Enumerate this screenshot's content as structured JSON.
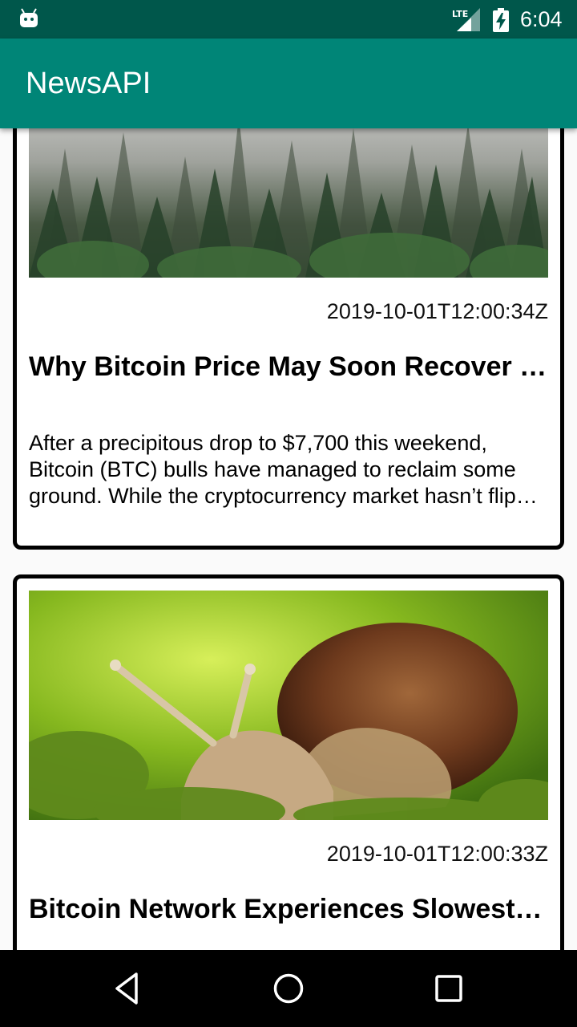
{
  "status_bar": {
    "time": "6:04",
    "network": "LTE",
    "icons": [
      "android-debug-icon",
      "lte-signal-icon",
      "battery-charging-icon"
    ]
  },
  "app_bar": {
    "title": "NewsAPI",
    "color": "#008577"
  },
  "articles": [
    {
      "image": "misty-forest-photo",
      "published_at": "2019-10-01T12:00:34Z",
      "title": "Why Bitcoin Price May Soon Recover t…",
      "description_lines": [
        "After a precipitous drop to $7,700 this weekend,",
        "Bitcoin (BTC) bulls have managed to reclaim some",
        "ground. While the cryptocurrency market hasn’t flip…"
      ]
    },
    {
      "image": "snail-on-moss-photo",
      "published_at": "2019-10-01T12:00:33Z",
      "title": "Bitcoin Network Experiences Slowest …"
    }
  ],
  "nav_bar": {
    "icons": [
      "back-icon",
      "home-icon",
      "recents-icon"
    ]
  },
  "colors": {
    "status_bar": "#00574b",
    "app_bar": "#008577",
    "background": "#fafafa"
  }
}
